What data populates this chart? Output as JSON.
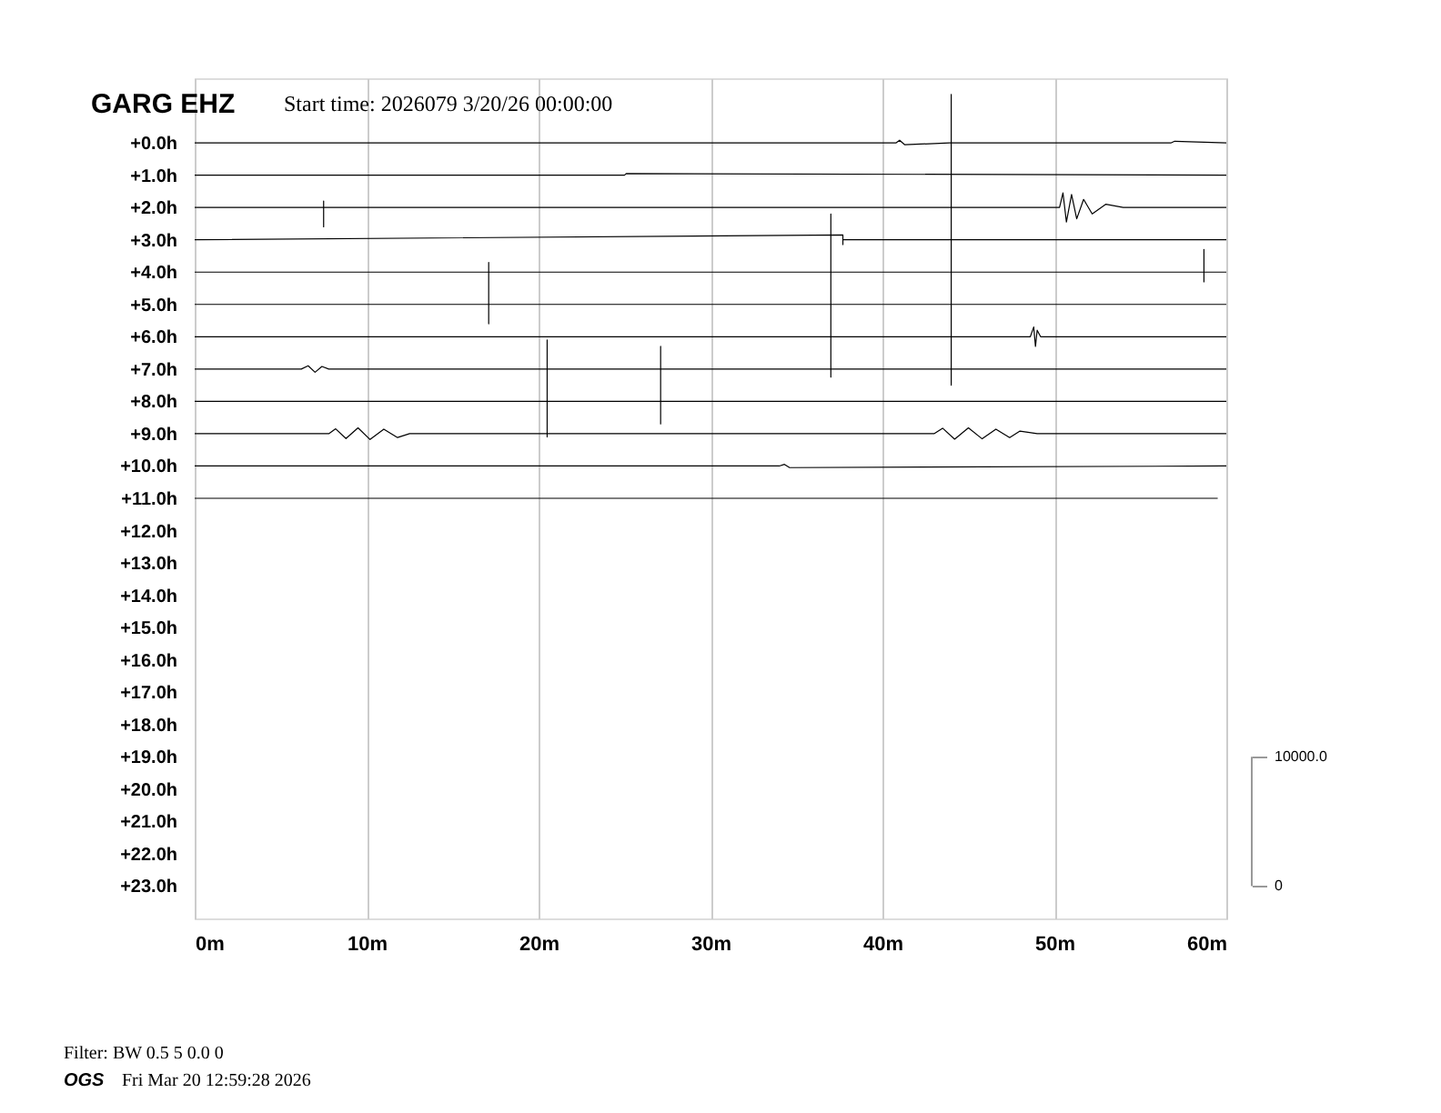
{
  "chart_data": {
    "type": "line",
    "title": "GARG EHZ",
    "subtitle": "Start time: 2026079  3/20/26 00:00:00",
    "annotations": [
      "Filter: BW 0.5 5 0.0 0",
      "OGS",
      "Fri Mar 20 12:59:28 2026"
    ],
    "xlim": [
      0,
      60
    ],
    "xticks": [
      {
        "value": 0,
        "label": "0m"
      },
      {
        "value": 10,
        "label": "10m"
      },
      {
        "value": 20,
        "label": "20m"
      },
      {
        "value": 30,
        "label": "30m"
      },
      {
        "value": 40,
        "label": "40m"
      },
      {
        "value": 50,
        "label": "50m"
      },
      {
        "value": 60,
        "label": "60m"
      }
    ],
    "ylim": [
      24,
      -2
    ],
    "yticks": [
      {
        "value": 0,
        "label": "+0.0h"
      },
      {
        "value": 1,
        "label": "+1.0h"
      },
      {
        "value": 2,
        "label": "+2.0h"
      },
      {
        "value": 3,
        "label": "+3.0h"
      },
      {
        "value": 4,
        "label": "+4.0h"
      },
      {
        "value": 5,
        "label": "+5.0h"
      },
      {
        "value": 6,
        "label": "+6.0h"
      },
      {
        "value": 7,
        "label": "+7.0h"
      },
      {
        "value": 8,
        "label": "+8.0h"
      },
      {
        "value": 9,
        "label": "+9.0h"
      },
      {
        "value": 10,
        "label": "+10.0h"
      },
      {
        "value": 11,
        "label": "+11.0h"
      },
      {
        "value": 12,
        "label": "+12.0h"
      },
      {
        "value": 13,
        "label": "+13.0h"
      },
      {
        "value": 14,
        "label": "+14.0h"
      },
      {
        "value": 15,
        "label": "+15.0h"
      },
      {
        "value": 16,
        "label": "+16.0h"
      },
      {
        "value": 17,
        "label": "+17.0h"
      },
      {
        "value": 18,
        "label": "+18.0h"
      },
      {
        "value": 19,
        "label": "+19.0h"
      },
      {
        "value": 20,
        "label": "+20.0h"
      },
      {
        "value": 21,
        "label": "+21.0h"
      },
      {
        "value": 22,
        "label": "+22.0h"
      },
      {
        "value": 23,
        "label": "+23.0h"
      }
    ],
    "y2lim": [
      -2500,
      62500
    ],
    "y2ticks": [
      0,
      {
        "value": 10000,
        "label": "10000.0"
      }
    ],
    "grid": "x",
    "marker": "none",
    "line_style": "solid",
    "series": [
      {
        "color": "#000000",
        "x": [
          0,
          40.8,
          41,
          41.3,
          43.9,
          56.8,
          57,
          60
        ],
        "values": [
          0,
          0,
          -0.08,
          0.06,
          0,
          0,
          -0.05,
          0
        ]
      },
      {
        "color": "#000000",
        "x": [
          0,
          25,
          25.1,
          60
        ],
        "values": [
          1,
          1,
          0.95,
          1
        ]
      },
      {
        "color": "#000000",
        "x": [
          0,
          7.5,
          7.5,
          7.5,
          7.5,
          50.3,
          50.5,
          50.7,
          51,
          51.3,
          51.7,
          52.2,
          53,
          54,
          60
        ],
        "values": [
          2,
          2,
          1.8,
          2.6,
          2,
          2,
          1.55,
          2.45,
          1.6,
          2.35,
          1.75,
          2.2,
          1.9,
          2,
          2
        ]
      },
      {
        "color": "#000000",
        "x": [
          0,
          37.7,
          37.7,
          37.7,
          44,
          44,
          44,
          44,
          60
        ],
        "values": [
          3,
          2.85,
          3.15,
          3,
          3,
          -1.5,
          7.5,
          3,
          3
        ]
      },
      {
        "color": "#000000",
        "x": [
          0,
          58.7,
          58.7,
          58.7,
          58.7,
          60
        ],
        "values": [
          4,
          4,
          3.3,
          4.3,
          4,
          4
        ]
      },
      {
        "color": "#000000",
        "x": [
          0,
          17.1,
          17.1,
          17.1,
          17.1,
          37,
          37,
          37,
          37,
          60
        ],
        "values": [
          5,
          5,
          3.7,
          5.6,
          5,
          5,
          2.2,
          7.25,
          5,
          5
        ]
      },
      {
        "color": "#000000",
        "x": [
          0,
          48.6,
          48.8,
          48.9,
          49,
          49.2,
          60
        ],
        "values": [
          6,
          6,
          5.7,
          6.3,
          5.8,
          6,
          6
        ]
      },
      {
        "color": "#000000",
        "x": [
          0,
          6.2,
          6.6,
          7,
          7.4,
          7.8,
          20.5,
          20.5,
          20.5,
          20.5,
          60
        ],
        "values": [
          7,
          7,
          6.9,
          7.1,
          6.92,
          7,
          7,
          6.1,
          9.1,
          7,
          7
        ]
      },
      {
        "color": "#000000",
        "x": [
          0,
          27.1,
          27.1,
          27.1,
          27.1,
          60
        ],
        "values": [
          8,
          8,
          6.3,
          8.7,
          8,
          8
        ]
      },
      {
        "color": "#000000",
        "x": [
          0,
          7.8,
          8.2,
          8.8,
          9.5,
          10.2,
          11,
          11.8,
          12.5,
          43,
          43.5,
          44.2,
          45,
          45.8,
          46.6,
          47.4,
          48,
          49,
          60
        ],
        "values": [
          9,
          9,
          8.85,
          9.15,
          8.82,
          9.18,
          8.86,
          9.12,
          9,
          9,
          8.83,
          9.17,
          8.82,
          9.16,
          8.86,
          9.12,
          8.92,
          9,
          9
        ]
      },
      {
        "color": "#000000",
        "x": [
          0,
          34,
          34.3,
          34.6,
          60
        ],
        "values": [
          10,
          10,
          9.95,
          10.05,
          10
        ]
      },
      {
        "color": "#000000",
        "x": [
          0,
          59.5
        ],
        "values": [
          11,
          11
        ]
      }
    ]
  }
}
